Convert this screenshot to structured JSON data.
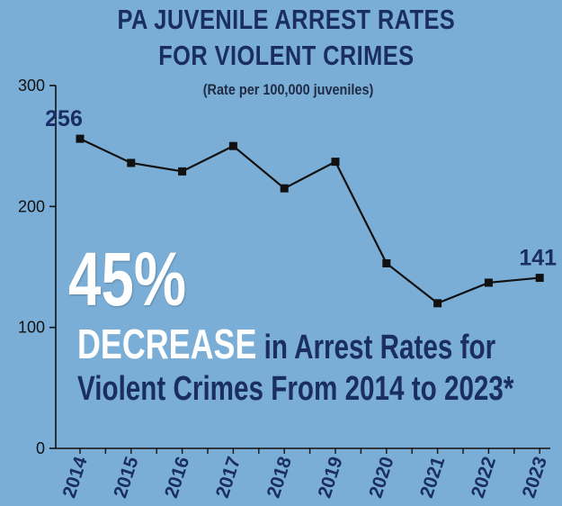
{
  "chart_data": {
    "type": "line",
    "title": "PA JUVENILE ARREST RATES FOR VIOLENT CRIMES",
    "title_lines": [
      "PA JUVENILE ARREST RATES",
      "FOR VIOLENT CRIMES"
    ],
    "subtitle": "(Rate per 100,000 juveniles)",
    "x": [
      "2014",
      "2015",
      "2016",
      "2017",
      "2018",
      "2019",
      "2020",
      "2021",
      "2022",
      "2023"
    ],
    "series": [
      {
        "values": [
          256,
          236,
          229,
          250,
          215,
          237,
          153,
          120,
          137,
          141
        ]
      }
    ],
    "ylim": [
      0,
      300
    ],
    "yticks": [
      "0",
      "100",
      "200",
      "300"
    ],
    "data_labels": [
      {
        "index": 0,
        "text": "256"
      },
      {
        "index": 9,
        "text": "141"
      }
    ],
    "grid": false,
    "colors": {
      "line": "#111111",
      "axis": "#111111",
      "label": "#1b2e63"
    }
  },
  "annotation": {
    "percent": "45%",
    "decrease_word": "DECREASE",
    "line1_rest": " in Arrest Rates for",
    "line2": "Violent Crimes From 2014 to 2023*"
  },
  "colors": {
    "background": "#7aaed6",
    "title": "#1b2e63",
    "highlight": "#ffffff"
  }
}
